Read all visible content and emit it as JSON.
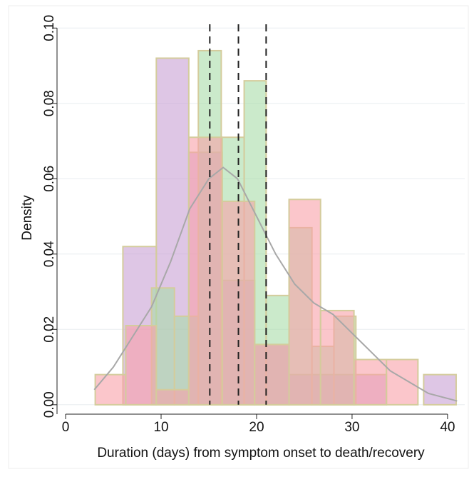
{
  "chart_data": {
    "type": "histogram",
    "y_label": "Density",
    "x_label": "Duration (days) from symptom onset to death/recovery",
    "xlim": [
      -0.9,
      41.8
    ],
    "ylim": [
      -0.0025,
      0.101
    ],
    "xticks": [
      0,
      10,
      20,
      30,
      40
    ],
    "yticks": [
      {
        "value": 0,
        "label": "0.00"
      },
      {
        "value": 0.02,
        "label": "0.02"
      },
      {
        "value": 0.04,
        "label": "0.04"
      },
      {
        "value": 0.06,
        "label": "0.06"
      },
      {
        "value": 0.08,
        "label": "0.08"
      },
      {
        "value": 0.1,
        "label": "0.10"
      }
    ],
    "grid": true,
    "series": [
      {
        "color": "#c8a0d4",
        "bins": [
          6.0,
          9.5,
          12.9,
          16.4,
          19.8,
          23.4,
          26.7,
          30.2,
          33.6,
          37.5,
          40.9
        ],
        "values": [
          0.042,
          0.092,
          0.067,
          0.033,
          0.016,
          0.008,
          0.008,
          0.008,
          0,
          0.008
        ]
      },
      {
        "color": "#a8dca8",
        "bins": [
          9.0,
          11.4,
          13.9,
          16.3,
          18.7,
          21.0,
          23.4,
          25.8,
          28.1,
          30.4
        ],
        "values": [
          0.031,
          0.0235,
          0.094,
          0.071,
          0.086,
          0.029,
          0.047,
          0.0155,
          0.0235
        ]
      },
      {
        "color": "#f8a0a8",
        "bins": [
          3.1,
          6.3,
          9.5,
          12.9,
          16.4,
          19.8,
          23.4,
          26.7,
          30.2,
          33.6,
          36.9
        ],
        "values": [
          0.008,
          0.021,
          0.004,
          0.071,
          0.054,
          0.016,
          0.0545,
          0.025,
          0.012,
          0.012
        ]
      }
    ],
    "density": {
      "color": "#a8a8a8",
      "x": [
        3,
        5,
        7,
        9,
        11,
        13,
        15,
        16.5,
        18,
        20,
        22,
        24,
        26,
        28,
        30,
        32,
        34,
        36,
        38,
        41
      ],
      "y": [
        0.004,
        0.01,
        0.018,
        0.026,
        0.038,
        0.052,
        0.06,
        0.063,
        0.06,
        0.05,
        0.04,
        0.032,
        0.027,
        0.024,
        0.019,
        0.014,
        0.009,
        0.006,
        0.003,
        0.001
      ]
    },
    "vlines": [
      15.1,
      18.1,
      21.0
    ],
    "bar_edge_color": "#d4cc9c",
    "vline_color": "#222222"
  }
}
